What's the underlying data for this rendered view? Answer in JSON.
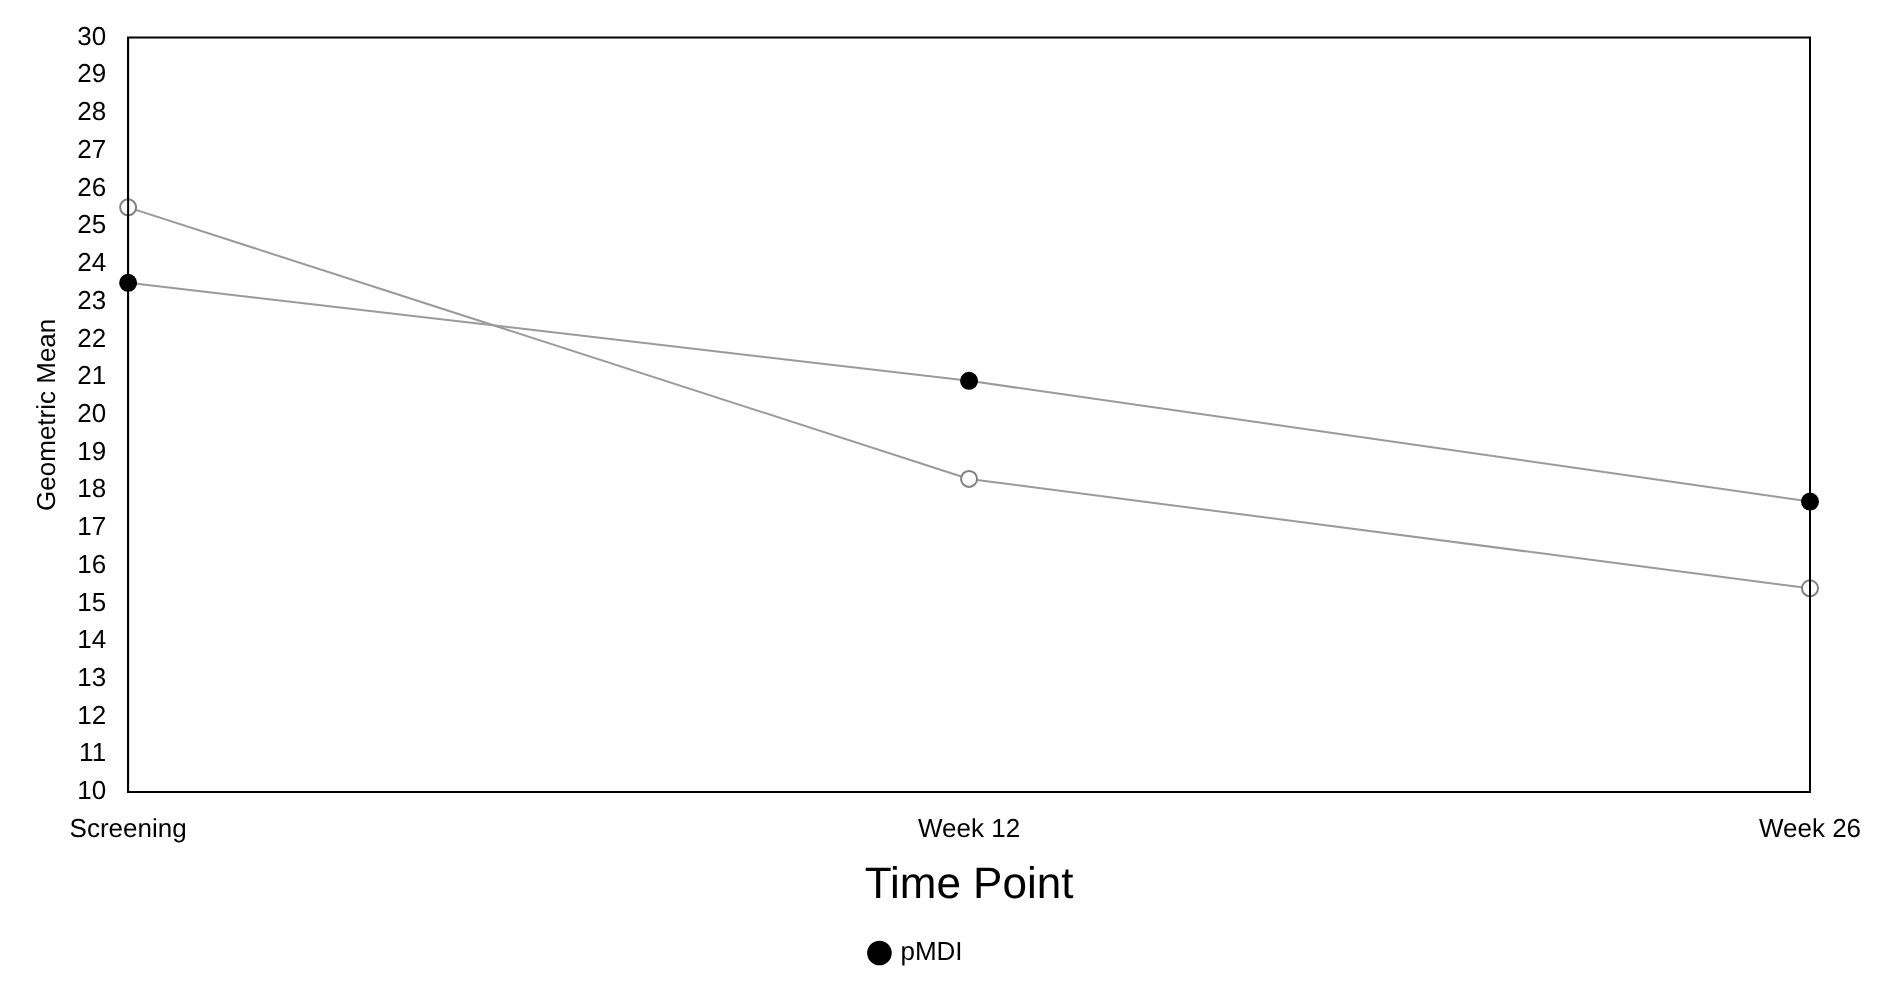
{
  "chart_data": {
    "type": "line",
    "xlabel": "Time Point",
    "ylabel": "Geometric Mean",
    "categories": [
      "Screening",
      "Week 12",
      "Week 26"
    ],
    "series": [
      {
        "name": "pMDI",
        "color": "#000000",
        "values": [
          23.5,
          20.9,
          17.7
        ]
      },
      {
        "color": "#808080",
        "values": [
          25.5,
          18.3,
          15.4
        ]
      }
    ],
    "ylim": [
      10,
      30
    ],
    "yticks": [
      10,
      11,
      12,
      13,
      14,
      15,
      16,
      17,
      18,
      19,
      20,
      21,
      22,
      23,
      24,
      25,
      26,
      27,
      28,
      29,
      30
    ],
    "grid": false,
    "legend": "bottom",
    "marker": "circle",
    "line_style": "solid"
  }
}
